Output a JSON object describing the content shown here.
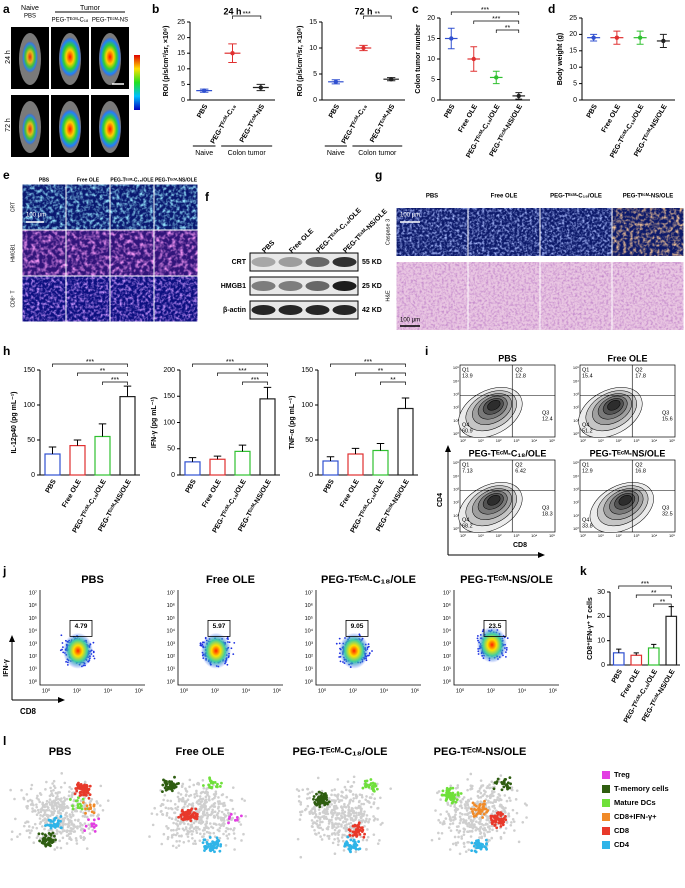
{
  "panel_labels": [
    "a",
    "b",
    "c",
    "d",
    "e",
    "f",
    "g",
    "h",
    "i",
    "j",
    "k",
    "l"
  ],
  "panel_a": {
    "naive": "Naive",
    "tumor": "Tumor",
    "columns": [
      "PBS",
      "PEG-Tᴱᶜᴹ-C₁₈",
      "PEG-Tᴱᶜᴹ-NS"
    ],
    "rows": [
      "24 h",
      "72 h"
    ]
  },
  "panel_e": {
    "columns": [
      "PBS",
      "Free OLE",
      "PEG-Tᴱᶜᴹ-C₁₈/OLE",
      "PEG-Tᴱᶜᴹ-NS/OLE"
    ],
    "rows": [
      "CRT",
      "HMGB1",
      "CD8⁺ T"
    ],
    "scale_bar": "100 μm"
  },
  "panel_f": {
    "columns": [
      "PBS",
      "Free OLE",
      "PEG-Tᴱᶜᴹ-C₁₈/OLE",
      "PEG-Tᴱᶜᴹ-NS/OLE"
    ],
    "rows": [
      {
        "name": "CRT",
        "size": "55 KD"
      },
      {
        "name": "HMGB1",
        "size": "25 KD"
      },
      {
        "name": "β-actin",
        "size": "42 KD"
      }
    ]
  },
  "panel_g": {
    "columns": [
      "PBS",
      "Free OLE",
      "PEG-Tᴱᶜᴹ-C₁₈/OLE",
      "PEG-Tᴱᶜᴹ-NS/OLE"
    ],
    "rows": [
      "Caspase 3",
      "H&E"
    ],
    "scale_bar": "100 μm"
  },
  "panel_i": {
    "x_label": "CD8",
    "y_label": "CD4",
    "ticks": [
      "10⁰",
      "10¹",
      "10²",
      "10³",
      "10⁴",
      "10⁵"
    ],
    "plots": [
      {
        "title": "PBS",
        "quadrants": [
          {
            "name": "Q1",
            "value": 13.9
          },
          {
            "name": "Q2",
            "value": 12.8
          },
          {
            "name": "Q3",
            "value": 12.4
          },
          {
            "name": "Q4",
            "value": 60.9
          }
        ]
      },
      {
        "title": "Free OLE",
        "quadrants": [
          {
            "name": "Q1",
            "value": 15.4
          },
          {
            "name": "Q2",
            "value": 17.8
          },
          {
            "name": "Q3",
            "value": 15.6
          },
          {
            "name": "Q4",
            "value": 51.2
          }
        ]
      },
      {
        "title": "PEG-Tᴱᶜᴹ-C₁₈/OLE",
        "quadrants": [
          {
            "name": "Q1",
            "value": 7.13
          },
          {
            "name": "Q2",
            "value": 6.42
          },
          {
            "name": "Q3",
            "value": 18.3
          },
          {
            "name": "Q4",
            "value": 68.2
          }
        ]
      },
      {
        "title": "PEG-Tᴱᶜᴹ-NS/OLE",
        "quadrants": [
          {
            "name": "Q1",
            "value": 12.9
          },
          {
            "name": "Q2",
            "value": 16.8
          },
          {
            "name": "Q3",
            "value": 32.5
          },
          {
            "name": "Q4",
            "value": 33.8
          }
        ]
      }
    ]
  },
  "panel_j": {
    "x_label": "CD8",
    "y_label": "IFN-γ",
    "xticks": [
      "10⁰",
      "10²",
      "10⁴",
      "10⁶"
    ],
    "yticks": [
      "10⁰",
      "10¹",
      "10²",
      "10³",
      "10⁴",
      "10⁵",
      "10⁶",
      "10⁷"
    ],
    "plots": [
      {
        "title": "PBS",
        "gate": 4.79
      },
      {
        "title": "Free OLE",
        "gate": 5.97
      },
      {
        "title": "PEG-Tᴱᶜᴹ-C₁₈/OLE",
        "gate": 9.05
      },
      {
        "title": "PEG-Tᴱᶜᴹ-NS/OLE",
        "gate": 23.5
      }
    ]
  },
  "panel_l": {
    "plots": [
      "PBS",
      "Free OLE",
      "PEG-Tᴱᶜᴹ-C₁₈/OLE",
      "PEG-Tᴱᶜᴹ-NS/OLE"
    ],
    "legend": [
      {
        "name": "Treg",
        "color": "#e23ee2"
      },
      {
        "name": "T-memory cells",
        "color": "#2e5d10"
      },
      {
        "name": "Mature DCs",
        "color": "#6fe03a"
      },
      {
        "name": "CD8+IFN-γ+",
        "color": "#f08a28"
      },
      {
        "name": "CD8",
        "color": "#e8392a"
      },
      {
        "name": "CD4",
        "color": "#2fb4e8"
      }
    ]
  },
  "chart_data": [
    {
      "type": "dot",
      "title": "24 h",
      "y_label": "ROI (p/s/cm²/sr, ×10⁸)",
      "categories": [
        "PBS",
        "PEG-Tᴱᶜᴹ-C₁₈",
        "PEG-Tᴱᶜᴹ-NS"
      ],
      "values": [
        3,
        15,
        4
      ],
      "errors": [
        0.5,
        3,
        1
      ],
      "colors": [
        "#3050d0",
        "#e03030",
        "#222222"
      ],
      "ylim": [
        0,
        25
      ],
      "yticks": [
        0,
        5,
        10,
        15,
        20,
        25
      ],
      "comparisons": [
        {
          "groups": [
            1,
            2
          ],
          "label": "***"
        }
      ],
      "groups": [
        {
          "label": "Naive",
          "span": [
            0,
            0
          ]
        },
        {
          "label": "Colon tumor",
          "span": [
            1,
            2
          ]
        }
      ]
    },
    {
      "type": "dot",
      "title": "72 h",
      "y_label": "ROI (p/s/cm²/sr, ×10⁸)",
      "categories": [
        "PBS",
        "PEG-Tᴱᶜᴹ-C₁₈",
        "PEG-Tᴱᶜᴹ-NS"
      ],
      "values": [
        3.5,
        10,
        4
      ],
      "errors": [
        0.4,
        0.5,
        0.3
      ],
      "colors": [
        "#3050d0",
        "#e03030",
        "#222222"
      ],
      "ylim": [
        0,
        15
      ],
      "yticks": [
        0,
        5,
        10,
        15
      ],
      "comparisons": [
        {
          "groups": [
            1,
            2
          ],
          "label": "**"
        }
      ],
      "groups": [
        {
          "label": "Naive",
          "span": [
            0,
            0
          ]
        },
        {
          "label": "Colon tumor",
          "span": [
            1,
            2
          ]
        }
      ]
    },
    {
      "type": "dot",
      "y_label": "Colon tumor number",
      "categories": [
        "PBS",
        "Free OLE",
        "PEG-Tᴱᶜᴹ-C₁₈/OLE",
        "PEG-Tᴱᶜᴹ-NS/OLE"
      ],
      "values": [
        15,
        10,
        5.5,
        1
      ],
      "errors": [
        2.5,
        3,
        1.5,
        0.8
      ],
      "colors": [
        "#3050d0",
        "#e03030",
        "#30c030",
        "#222222"
      ],
      "ylim": [
        0,
        20
      ],
      "yticks": [
        0,
        5,
        10,
        15,
        20
      ],
      "comparisons": [
        {
          "groups": [
            0,
            3
          ],
          "label": "***"
        },
        {
          "groups": [
            1,
            3
          ],
          "label": "***"
        },
        {
          "groups": [
            2,
            3
          ],
          "label": "**"
        }
      ]
    },
    {
      "type": "dot",
      "y_label": "Body weight (g)",
      "categories": [
        "PBS",
        "Free OLE",
        "PEG-Tᴱᶜᴹ-C₁₈/OLE",
        "PEG-Tᴱᶜᴹ-NS/OLE"
      ],
      "values": [
        19,
        19,
        19,
        18
      ],
      "errors": [
        1,
        2,
        2,
        2
      ],
      "colors": [
        "#3050d0",
        "#e03030",
        "#30c030",
        "#222222"
      ],
      "ylim": [
        0,
        25
      ],
      "yticks": [
        0,
        5,
        10,
        15,
        20,
        25
      ]
    },
    {
      "type": "bar",
      "y_label": "IL-12p40 (pg mL⁻¹)",
      "categories": [
        "PBS",
        "Free OLE",
        "PEG-Tᴱᶜᴹ-C₁₈/OLE",
        "PEG-Tᴱᶜᴹ-NS/OLE"
      ],
      "values": [
        30,
        42,
        55,
        112
      ],
      "errors": [
        10,
        8,
        18,
        15
      ],
      "colors": [
        "#3050d0",
        "#e03030",
        "#30c030",
        "#222222"
      ],
      "ylim": [
        0,
        150
      ],
      "yticks": [
        0,
        50,
        100,
        150
      ],
      "comparisons": [
        {
          "groups": [
            0,
            3
          ],
          "label": "***"
        },
        {
          "groups": [
            1,
            3
          ],
          "label": "**"
        },
        {
          "groups": [
            2,
            3
          ],
          "label": "***"
        }
      ]
    },
    {
      "type": "bar",
      "y_label": "IFN-γ (pg mL⁻¹)",
      "categories": [
        "PBS",
        "Free OLE",
        "PEG-Tᴱᶜᴹ-C₁₈/OLE",
        "PEG-Tᴱᶜᴹ-NS/OLE"
      ],
      "values": [
        25,
        30,
        45,
        145
      ],
      "errors": [
        8,
        6,
        12,
        22
      ],
      "colors": [
        "#3050d0",
        "#e03030",
        "#30c030",
        "#222222"
      ],
      "ylim": [
        0,
        200
      ],
      "yticks": [
        0,
        50,
        100,
        150,
        200
      ],
      "comparisons": [
        {
          "groups": [
            0,
            3
          ],
          "label": "***"
        },
        {
          "groups": [
            1,
            3
          ],
          "label": "***"
        },
        {
          "groups": [
            2,
            3
          ],
          "label": "***"
        }
      ]
    },
    {
      "type": "bar",
      "y_label": "TNF-α (pg mL⁻¹)",
      "categories": [
        "PBS",
        "Free OLE",
        "PEG-Tᴱᶜᴹ-C₁₈/OLE",
        "PEG-Tᴱᶜᴹ-NS/OLE"
      ],
      "values": [
        20,
        30,
        35,
        95
      ],
      "errors": [
        6,
        8,
        10,
        15
      ],
      "colors": [
        "#3050d0",
        "#e03030",
        "#30c030",
        "#222222"
      ],
      "ylim": [
        0,
        150
      ],
      "yticks": [
        0,
        50,
        100,
        150
      ],
      "comparisons": [
        {
          "groups": [
            0,
            3
          ],
          "label": "***"
        },
        {
          "groups": [
            1,
            3
          ],
          "label": "**"
        },
        {
          "groups": [
            2,
            3
          ],
          "label": "**"
        }
      ]
    },
    {
      "type": "bar",
      "y_label": "CD8⁺IFN-γ⁺ T cells",
      "categories": [
        "PBS",
        "Free OLE",
        "PEG-Tᴱᶜᴹ-C₁₈/OLE",
        "PEG-Tᴱᶜᴹ-NS/OLE"
      ],
      "values": [
        5,
        4,
        7,
        20
      ],
      "errors": [
        1.5,
        1,
        1.5,
        4
      ],
      "colors": [
        "#3050d0",
        "#e03030",
        "#30c030",
        "#222222"
      ],
      "ylim": [
        0,
        30
      ],
      "yticks": [
        0,
        10,
        20,
        30
      ],
      "comparisons": [
        {
          "groups": [
            0,
            3
          ],
          "label": "***"
        },
        {
          "groups": [
            1,
            3
          ],
          "label": "**"
        },
        {
          "groups": [
            2,
            3
          ],
          "label": "**"
        }
      ]
    }
  ]
}
